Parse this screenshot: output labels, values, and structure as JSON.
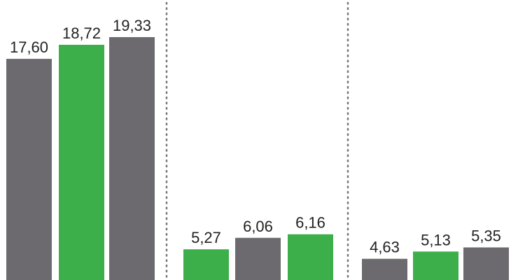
{
  "chart_data": {
    "type": "bar",
    "groups": [
      {
        "values": [
          17.6,
          18.72,
          19.33
        ],
        "labels": [
          "17,60",
          "18,72",
          "19,33"
        ],
        "colors": [
          "gray",
          "green",
          "gray"
        ]
      },
      {
        "values": [
          5.27,
          6.06,
          6.16
        ],
        "labels": [
          "5,27",
          "6,06",
          "6,16"
        ],
        "colors": [
          "green",
          "gray",
          "green"
        ]
      },
      {
        "values": [
          4.63,
          5.13,
          5.35
        ],
        "labels": [
          "4,63",
          "5,13",
          "5,35"
        ],
        "colors": [
          "gray",
          "green",
          "gray"
        ]
      }
    ],
    "colors": {
      "gray": "#6c6a6f",
      "green": "#3daf4a"
    },
    "grid": false,
    "group_dividers": "dotted"
  }
}
